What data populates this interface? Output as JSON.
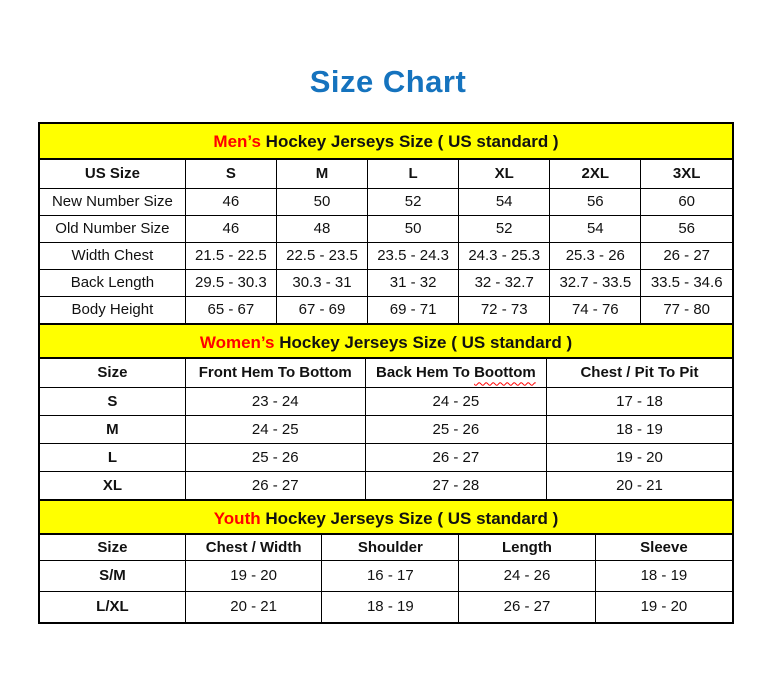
{
  "page": {
    "title": "Size Chart"
  },
  "colors": {
    "title_blue": "#1573be",
    "banner_yellow": "#ffff00",
    "highlight_red": "#ff0000",
    "grid_black": "#000000",
    "text_black": "#111111",
    "background_white": "#ffffff"
  },
  "sections": [
    {
      "id": "mens",
      "banner": {
        "highlight": "Men’s",
        "rest": " Hockey Jerseys Size ( US standard )"
      },
      "table": {
        "headers": [
          "US Size",
          "S",
          "M",
          "L",
          "XL",
          "2XL",
          "3XL"
        ],
        "rows": [
          [
            "New Number Size",
            "46",
            "50",
            "52",
            "54",
            "56",
            "60"
          ],
          [
            "Old Number Size",
            "46",
            "48",
            "50",
            "52",
            "54",
            "56"
          ],
          [
            "Width Chest",
            "21.5 - 22.5",
            "22.5 - 23.5",
            "23.5 - 24.3",
            "24.3 - 25.3",
            "25.3 - 26",
            "26 - 27"
          ],
          [
            "Back Length",
            "29.5 - 30.3",
            "30.3 - 31",
            "31 - 32",
            "32 - 32.7",
            "32.7 - 33.5",
            "33.5 - 34.6"
          ],
          [
            "Body Height",
            "65 - 67",
            "67 - 69",
            "69 - 71",
            "72 - 73",
            "74 - 76",
            "77 - 80"
          ]
        ]
      }
    },
    {
      "id": "womens",
      "banner": {
        "highlight": "Women’s",
        "rest": " Hockey Jerseys Size ( US standard )"
      },
      "table": {
        "headers": [
          "Size",
          "Front Hem To Bottom",
          "Back Hem To Boottom",
          "Chest / Pit To Pit"
        ],
        "spellcheck_flagged": [
          "Boottom"
        ],
        "rows": [
          [
            "S",
            "23 - 24",
            "24 - 25",
            "17 - 18"
          ],
          [
            "M",
            "24 - 25",
            "25 - 26",
            "18 - 19"
          ],
          [
            "L",
            "25 - 26",
            "26 - 27",
            "19 - 20"
          ],
          [
            "XL",
            "26 - 27",
            "27 - 28",
            "20 - 21"
          ]
        ]
      }
    },
    {
      "id": "youth",
      "banner": {
        "highlight": "Youth",
        "rest": " Hockey Jerseys Size ( US standard )"
      },
      "table": {
        "headers": [
          "Size",
          "Chest / Width",
          "Shoulder",
          "Length",
          "Sleeve"
        ],
        "rows": [
          [
            "S/M",
            "19 - 20",
            "16 - 17",
            "24 - 26",
            "18 - 19"
          ],
          [
            "L/XL",
            "20 - 21",
            "18 - 19",
            "26 - 27",
            "19 - 20"
          ]
        ]
      }
    }
  ]
}
